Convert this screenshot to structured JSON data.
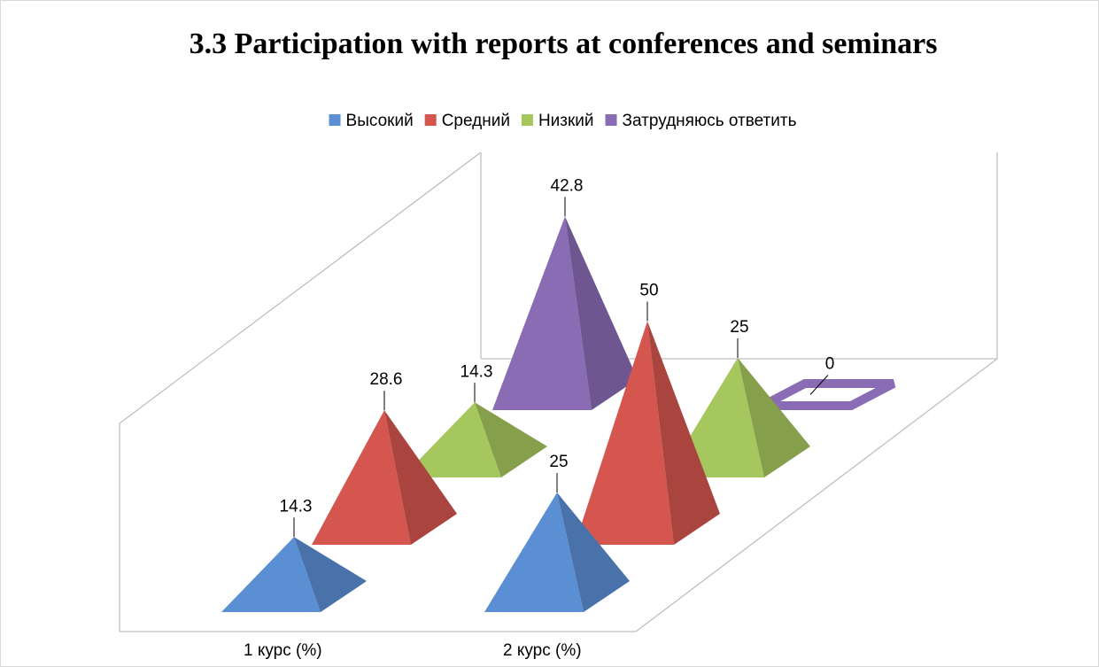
{
  "chart_data": {
    "type": "pyramid3d",
    "title": "3.3 Participation with reports at conferences and seminars",
    "categories": [
      "1 курс (%)",
      "2 курс (%)"
    ],
    "series": [
      {
        "name": "Высокий",
        "color": "#5b8fd4",
        "values": [
          14.3,
          25
        ]
      },
      {
        "name": "Средний",
        "color": "#d5554f",
        "values": [
          28.6,
          50
        ]
      },
      {
        "name": "Низкий",
        "color": "#a6c75e",
        "values": [
          14.3,
          25
        ]
      },
      {
        "name": "Затрудняюсь ответить",
        "color": "#8a6cb5",
        "values": [
          42.8,
          0
        ]
      }
    ],
    "legend": "top"
  }
}
